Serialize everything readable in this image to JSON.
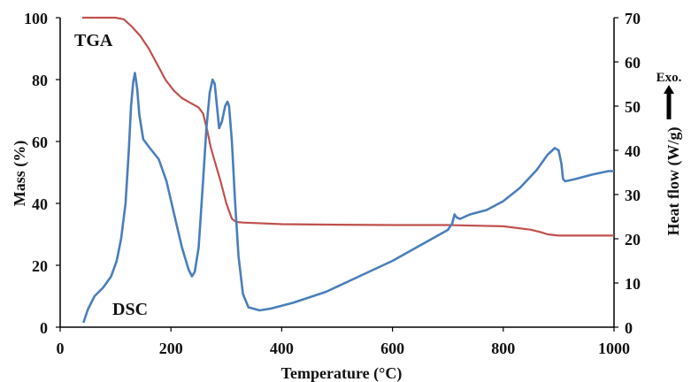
{
  "chart_data": {
    "type": "line",
    "xlabel": "Temperature (°C)",
    "ylabel_left": "Mass (%)",
    "ylabel_right": "Heat flow (W/g)",
    "exo_label": "Exo.",
    "xlim": [
      0,
      1000
    ],
    "ylim_left": [
      0,
      100
    ],
    "ylim_right": [
      0,
      70
    ],
    "x_ticks": [
      "0",
      "200",
      "400",
      "600",
      "800",
      "1000"
    ],
    "y_left_ticks": [
      "0",
      "20",
      "40",
      "60",
      "80",
      "100"
    ],
    "y_right_ticks": [
      "0",
      "10",
      "20",
      "30",
      "40",
      "50",
      "60",
      "70"
    ],
    "grid": false,
    "series": [
      {
        "name": "TGA",
        "axis": "left",
        "color": "#c0504d",
        "points": [
          [
            40,
            100
          ],
          [
            100,
            100
          ],
          [
            115,
            99.5
          ],
          [
            130,
            97
          ],
          [
            145,
            94
          ],
          [
            160,
            90
          ],
          [
            175,
            85
          ],
          [
            190,
            80
          ],
          [
            205,
            76.5
          ],
          [
            220,
            74
          ],
          [
            235,
            72.5
          ],
          [
            250,
            71
          ],
          [
            258,
            69
          ],
          [
            265,
            64
          ],
          [
            272,
            58
          ],
          [
            280,
            53
          ],
          [
            290,
            47
          ],
          [
            300,
            40
          ],
          [
            310,
            35
          ],
          [
            318,
            34
          ],
          [
            330,
            33.8
          ],
          [
            400,
            33.3
          ],
          [
            500,
            33.1
          ],
          [
            600,
            33
          ],
          [
            700,
            33
          ],
          [
            800,
            32.6
          ],
          [
            850,
            31.5
          ],
          [
            870,
            30.6
          ],
          [
            880,
            30
          ],
          [
            900,
            29.6
          ],
          [
            1000,
            29.6
          ]
        ]
      },
      {
        "name": "DSC",
        "axis": "right",
        "color": "#4a7ebb",
        "points": [
          [
            42,
            1
          ],
          [
            50,
            4
          ],
          [
            62,
            7
          ],
          [
            78,
            9
          ],
          [
            92,
            11.5
          ],
          [
            102,
            15
          ],
          [
            110,
            20
          ],
          [
            118,
            28
          ],
          [
            124,
            40
          ],
          [
            128,
            50
          ],
          [
            132,
            55.5
          ],
          [
            135,
            57.5
          ],
          [
            139,
            54
          ],
          [
            143,
            48
          ],
          [
            150,
            42.5
          ],
          [
            162,
            40.5
          ],
          [
            178,
            38
          ],
          [
            192,
            33
          ],
          [
            205,
            26
          ],
          [
            220,
            18
          ],
          [
            232,
            13
          ],
          [
            238,
            11.5
          ],
          [
            243,
            12.5
          ],
          [
            250,
            18
          ],
          [
            258,
            33
          ],
          [
            264,
            45
          ],
          [
            270,
            53
          ],
          [
            275,
            56
          ],
          [
            279,
            55
          ],
          [
            283,
            50
          ],
          [
            287,
            45
          ],
          [
            292,
            46.5
          ],
          [
            298,
            50
          ],
          [
            302,
            51
          ],
          [
            305,
            50
          ],
          [
            310,
            42
          ],
          [
            316,
            28
          ],
          [
            322,
            16
          ],
          [
            330,
            7.5
          ],
          [
            340,
            4.5
          ],
          [
            360,
            3.8
          ],
          [
            380,
            4.2
          ],
          [
            420,
            5.5
          ],
          [
            480,
            8
          ],
          [
            540,
            11.5
          ],
          [
            600,
            15
          ],
          [
            650,
            18.5
          ],
          [
            700,
            22
          ],
          [
            708,
            23.5
          ],
          [
            712,
            25.5
          ],
          [
            716,
            24.8
          ],
          [
            722,
            24.5
          ],
          [
            740,
            25.5
          ],
          [
            770,
            26.5
          ],
          [
            800,
            28.5
          ],
          [
            830,
            31.5
          ],
          [
            860,
            35.5
          ],
          [
            880,
            39
          ],
          [
            893,
            40.5
          ],
          [
            900,
            40
          ],
          [
            905,
            37
          ],
          [
            908,
            33.5
          ],
          [
            912,
            33
          ],
          [
            930,
            33.5
          ],
          [
            960,
            34.5
          ],
          [
            990,
            35.3
          ],
          [
            1000,
            35.3
          ]
        ]
      }
    ]
  }
}
